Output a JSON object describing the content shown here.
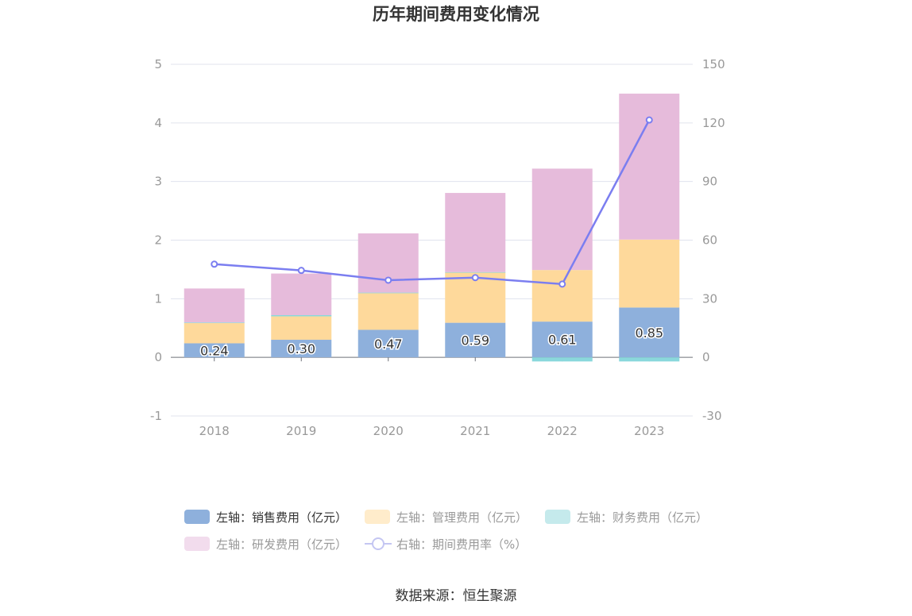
{
  "chart_data": {
    "type": "bar",
    "title": "历年期间费用变化情况",
    "categories": [
      "2018",
      "2019",
      "2020",
      "2021",
      "2022",
      "2023"
    ],
    "stacked": true,
    "left_axis": {
      "ylim": [
        -1,
        5
      ],
      "ticks": [
        "5",
        "4",
        "3",
        "2",
        "1",
        "0",
        "-1"
      ]
    },
    "right_axis": {
      "ylim": [
        -30,
        150
      ],
      "ticks": [
        "150",
        "120",
        "90",
        "60",
        "30",
        "0",
        "-30"
      ]
    },
    "series": [
      {
        "name": "左轴：销售费用（亿元）",
        "axis": "left",
        "color": "#8eb0dc",
        "values": [
          0.24,
          0.3,
          0.47,
          0.59,
          0.61,
          0.85
        ],
        "labels": [
          "0.24",
          "0.30",
          "0.47",
          "0.59",
          "0.61",
          "0.85"
        ]
      },
      {
        "name": "左轴：管理费用（亿元）",
        "axis": "left",
        "color": "#fed99b",
        "values": [
          0.35,
          0.4,
          0.63,
          0.86,
          0.88,
          1.16
        ]
      },
      {
        "name": "左轴：财务费用（亿元）",
        "axis": "left",
        "color": "#8ad8dc",
        "values": [
          0.005,
          0.02,
          0.005,
          0.005,
          -0.07,
          -0.07
        ]
      },
      {
        "name": "左轴：研发费用（亿元）",
        "axis": "left",
        "color": "#e6bbdb",
        "values": [
          0.58,
          0.71,
          1.01,
          1.35,
          1.73,
          2.49
        ]
      },
      {
        "name": "右轴：期间费用率（%）",
        "axis": "right",
        "type": "line",
        "color": "#7b7ef0",
        "values": [
          47.7,
          44.5,
          39.5,
          40.8,
          37.5,
          121.5
        ]
      }
    ],
    "grid": true,
    "legend_position": "bottom"
  },
  "source": "数据来源：恒生聚源",
  "colors": {
    "text": "#333333",
    "axis_text": "#999999",
    "grid": "#e0e3ee"
  }
}
